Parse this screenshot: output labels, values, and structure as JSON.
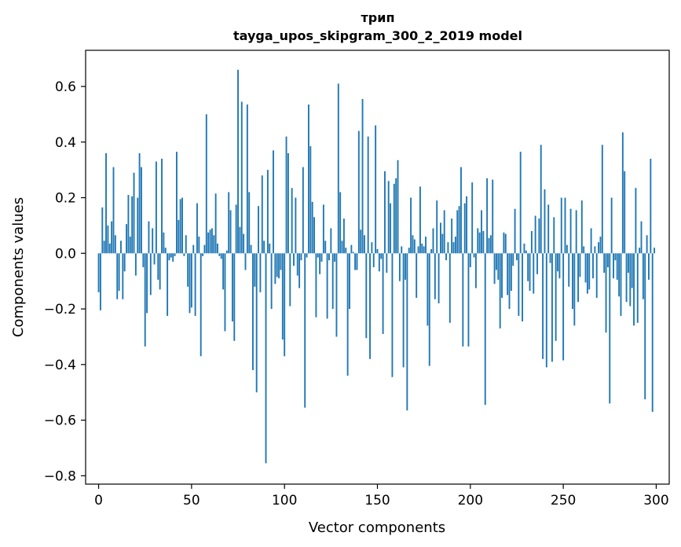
{
  "chart_data": {
    "type": "bar",
    "title": "трип",
    "subtitle": "tayga_upos_skipgram_300_2_2019 model",
    "xlabel": "Vector components",
    "ylabel": "Components values",
    "xlim": [
      -7,
      307
    ],
    "ylim": [
      -0.83,
      0.73
    ],
    "x_ticks": [
      0,
      50,
      100,
      150,
      200,
      250,
      300
    ],
    "x_tick_labels": [
      "0",
      "50",
      "100",
      "150",
      "200",
      "250",
      "300"
    ],
    "y_ticks": [
      -0.8,
      -0.6,
      -0.4,
      -0.2,
      0.0,
      0.2,
      0.4,
      0.6
    ],
    "y_tick_labels": [
      "−0.8",
      "−0.6",
      "−0.4",
      "−0.2",
      "0.0",
      "0.2",
      "0.4",
      "0.6"
    ],
    "bar_color": "#1f77b4",
    "grid": false,
    "x": "0..299 (component index)",
    "values": [
      -0.14,
      -0.205,
      0.165,
      0.045,
      0.36,
      0.1,
      0.035,
      0.115,
      0.31,
      0.065,
      -0.165,
      -0.135,
      0.045,
      -0.165,
      -0.065,
      0.105,
      0.21,
      0.06,
      0.205,
      0.29,
      -0.08,
      0.2,
      0.36,
      0.31,
      -0.05,
      -0.335,
      -0.215,
      0.115,
      -0.15,
      0.09,
      -0.04,
      0.33,
      -0.095,
      -0.13,
      0.34,
      0.075,
      0.02,
      -0.225,
      -0.025,
      -0.015,
      -0.03,
      -0.01,
      0.365,
      0.12,
      0.195,
      0.2,
      -0.01,
      0.065,
      -0.12,
      -0.215,
      -0.195,
      0.03,
      -0.225,
      0.18,
      0.06,
      -0.37,
      -0.01,
      0.03,
      0.5,
      0.075,
      0.085,
      0.09,
      0.065,
      0.215,
      0.035,
      -0.01,
      -0.02,
      -0.13,
      -0.28,
      0.01,
      0.22,
      0.155,
      -0.245,
      -0.315,
      0.175,
      0.66,
      0.095,
      0.545,
      0.07,
      -0.06,
      0.535,
      0.22,
      0.03,
      -0.42,
      -0.12,
      -0.5,
      0.17,
      -0.14,
      0.28,
      0.045,
      -0.755,
      0.3,
      0.035,
      -0.2,
      0.37,
      -0.11,
      -0.085,
      -0.09,
      -0.06,
      -0.31,
      -0.37,
      0.42,
      0.36,
      -0.19,
      0.235,
      -0.045,
      0.2,
      -0.08,
      -0.125,
      -0.025,
      0.31,
      -0.555,
      -0.015,
      0.535,
      0.385,
      0.185,
      0.13,
      -0.23,
      -0.015,
      -0.075,
      -0.03,
      0.175,
      0.045,
      -0.235,
      -0.025,
      0.09,
      -0.2,
      -0.03,
      -0.3,
      0.61,
      0.22,
      0.045,
      0.125,
      0.02,
      -0.44,
      -0.2,
      0.03,
      0.005,
      -0.06,
      -0.06,
      0.44,
      0.085,
      0.555,
      0.065,
      -0.305,
      0.42,
      -0.38,
      0.04,
      -0.05,
      0.46,
      0.015,
      -0.065,
      -0.02,
      -0.29,
      0.295,
      -0.07,
      0.26,
      0.18,
      -0.445,
      0.25,
      0.27,
      0.335,
      -0.1,
      0.025,
      -0.41,
      -0.095,
      -0.565,
      0.02,
      0.2,
      0.065,
      0.05,
      -0.16,
      0.025,
      0.24,
      0.035,
      0.025,
      0.06,
      -0.26,
      -0.405,
      0.015,
      0.09,
      -0.165,
      0.19,
      -0.18,
      0.11,
      0.07,
      0.155,
      -0.025,
      0.04,
      -0.25,
      0.125,
      0.04,
      0.06,
      0.155,
      0.17,
      0.31,
      -0.335,
      0.18,
      0.205,
      -0.335,
      -0.05,
      0.255,
      -0.015,
      -0.125,
      0.09,
      0.075,
      0.155,
      0.08,
      -0.545,
      0.27,
      0.055,
      0.065,
      0.265,
      -0.11,
      -0.06,
      -0.095,
      -0.27,
      -0.16,
      0.075,
      0.07,
      -0.15,
      -0.2,
      -0.135,
      -0.045,
      0.16,
      -0.025,
      -0.225,
      0.365,
      -0.245,
      0.035,
      0.01,
      -0.1,
      -0.135,
      0.08,
      -0.145,
      0.135,
      -0.075,
      0.125,
      0.39,
      -0.38,
      0.23,
      -0.41,
      0.175,
      -0.035,
      -0.39,
      0.13,
      -0.315,
      -0.065,
      -0.09,
      0.2,
      -0.385,
      0.2,
      0.03,
      -0.12,
      0.16,
      -0.2,
      -0.26,
      0.155,
      -0.175,
      -0.085,
      0.19,
      0.025,
      -0.105,
      -0.145,
      -0.13,
      0.09,
      -0.09,
      0.025,
      -0.16,
      0.04,
      0.06,
      0.39,
      -0.07,
      -0.285,
      -0.05,
      -0.54,
      0.2,
      -0.09,
      -0.025,
      -0.095,
      -0.155,
      -0.225,
      0.435,
      0.295,
      -0.175,
      -0.07,
      -0.19,
      -0.125,
      -0.26,
      0.235,
      -0.25,
      0.02,
      0.115,
      -0.165,
      -0.525,
      0.065,
      -0.095,
      0.34,
      -0.57,
      0.02
    ]
  }
}
